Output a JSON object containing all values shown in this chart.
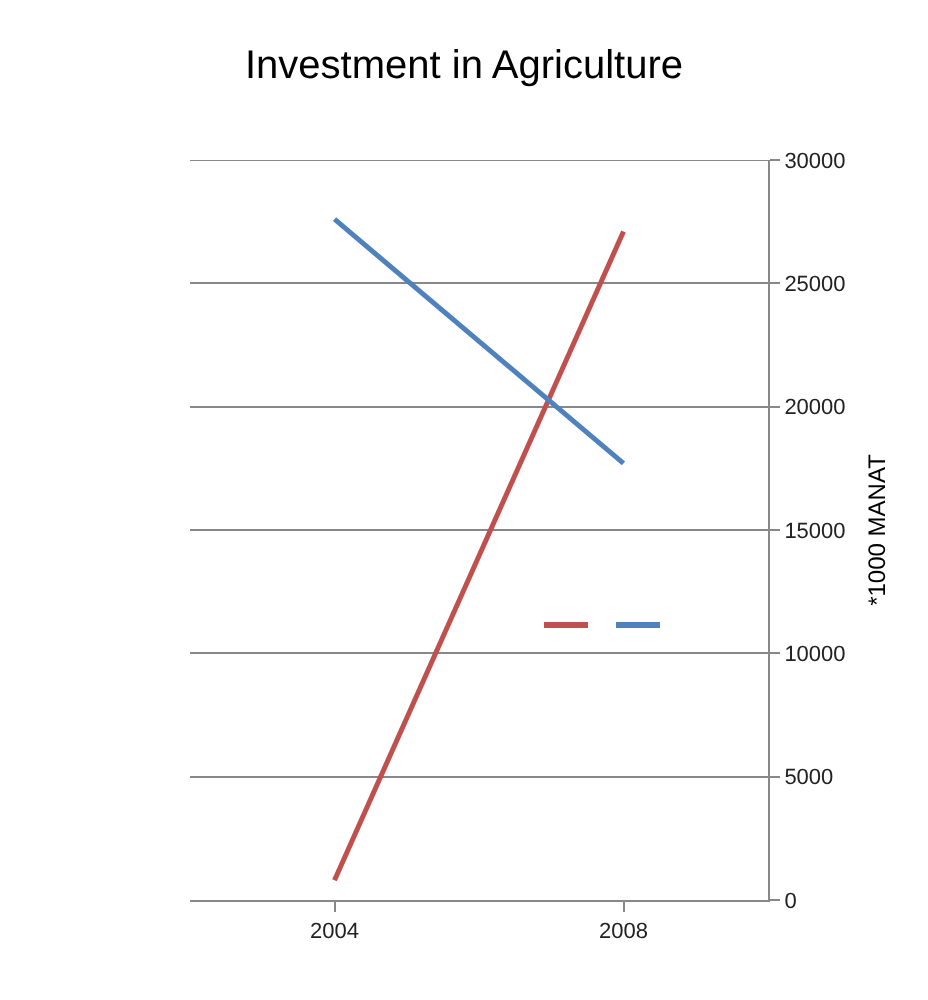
{
  "chart_data": {
    "type": "line",
    "title": "Investment in Agriculture",
    "ylabel": "*1000 MANAT",
    "categories": [
      "2004",
      "2008"
    ],
    "series": [
      {
        "color": "#c0504d",
        "values": [
          800,
          27100
        ]
      },
      {
        "color": "#4f81bd",
        "values": [
          27600,
          17700
        ]
      }
    ],
    "ylim": [
      0,
      30000
    ],
    "yticks": [
      0,
      5000,
      10000,
      15000,
      20000,
      25000,
      30000
    ],
    "grid": "y",
    "marker": "none",
    "line_style": "solid"
  }
}
